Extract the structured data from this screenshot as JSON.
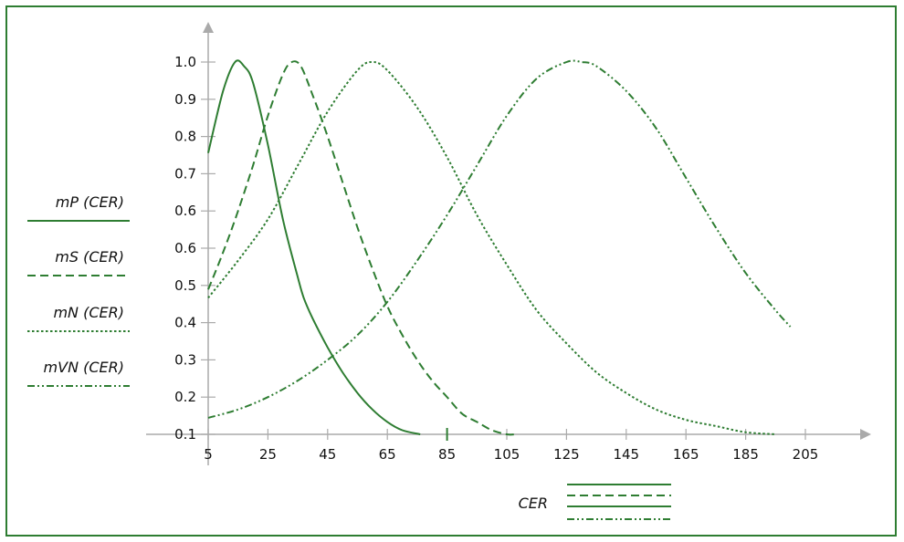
{
  "chart_data": {
    "type": "line",
    "xlabel": "CER",
    "ylabel": "",
    "xlim": [
      5,
      205
    ],
    "ylim": [
      0.1,
      1.0
    ],
    "x_ticks": [
      "5",
      "25",
      "45",
      "65",
      "85",
      "105",
      "125",
      "145",
      "165",
      "185",
      "205"
    ],
    "y_ticks": [
      "0.1",
      "0.2",
      "0.3",
      "0.4",
      "0.5",
      "0.6",
      "0.6",
      "0.7",
      "0.8",
      "0.9",
      "1.0"
    ],
    "grid": false,
    "legend_position": "left",
    "colors": {
      "line": "#2e7d32",
      "axis": "#aaaaaa",
      "frame": "#2e7d32"
    },
    "series": [
      {
        "name": "mP (CER)",
        "dash": "solid",
        "x": [
          5,
          10,
          14,
          17,
          20,
          25,
          30,
          35,
          37,
          40,
          45,
          50,
          55,
          60,
          65,
          70,
          76
        ],
        "y": [
          0.78,
          0.93,
          1.0,
          0.99,
          0.95,
          0.8,
          0.62,
          0.48,
          0.43,
          0.38,
          0.31,
          0.25,
          0.2,
          0.16,
          0.13,
          0.11,
          0.1
        ]
      },
      {
        "name": "mS (CER)",
        "dash": "dashed",
        "x": [
          5,
          10,
          15,
          20,
          25,
          30,
          33,
          36,
          40,
          45,
          50,
          55,
          60,
          65,
          70,
          75,
          80,
          85,
          90,
          95,
          100,
          105,
          108
        ],
        "y": [
          0.45,
          0.54,
          0.64,
          0.75,
          0.87,
          0.97,
          1.0,
          0.99,
          0.92,
          0.82,
          0.71,
          0.6,
          0.5,
          0.41,
          0.34,
          0.28,
          0.23,
          0.19,
          0.15,
          0.13,
          0.11,
          0.1,
          0.1
        ]
      },
      {
        "name": "mN (CER)",
        "dash": "dotted",
        "x": [
          5,
          15,
          25,
          35,
          45,
          55,
          60,
          65,
          75,
          85,
          95,
          105,
          115,
          125,
          135,
          145,
          155,
          165,
          175,
          185,
          195
        ],
        "y": [
          0.43,
          0.52,
          0.62,
          0.75,
          0.88,
          0.98,
          1.0,
          0.98,
          0.89,
          0.77,
          0.63,
          0.51,
          0.4,
          0.32,
          0.25,
          0.2,
          0.16,
          0.135,
          0.12,
          0.105,
          0.1
        ]
      },
      {
        "name": "mVN (CER)",
        "dash": "dashdot",
        "x": [
          5,
          15,
          25,
          35,
          45,
          55,
          65,
          75,
          85,
          95,
          105,
          115,
          125,
          130,
          135,
          145,
          155,
          165,
          175,
          185,
          195,
          200
        ],
        "y": [
          0.14,
          0.16,
          0.19,
          0.23,
          0.28,
          0.34,
          0.42,
          0.52,
          0.63,
          0.75,
          0.87,
          0.96,
          1.0,
          1.0,
          0.99,
          0.93,
          0.84,
          0.72,
          0.6,
          0.49,
          0.4,
          0.36
        ]
      }
    ]
  }
}
